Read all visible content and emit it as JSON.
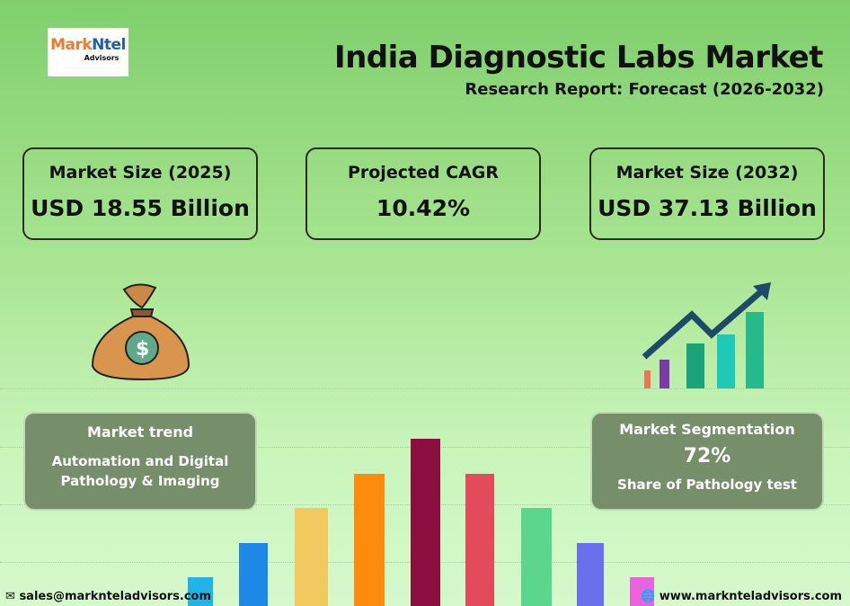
{
  "logo": {
    "brand_a": "Mark",
    "brand_b": "Ntel",
    "sub": "Advisors"
  },
  "header": {
    "title": "India Diagnostic Labs Market",
    "subtitle": "Research Report: Forecast (2026-2032)"
  },
  "stats": [
    {
      "label": "Market Size (2025)",
      "value": "USD 18.55 Billion"
    },
    {
      "label": "Projected CAGR",
      "value": "10.42%"
    },
    {
      "label": "Market Size (2032)",
      "value": "USD 37.13 Billion"
    }
  ],
  "trend": {
    "title": "Market trend",
    "text": "Automation and Digital Pathology & Imaging"
  },
  "segmentation": {
    "title": "Market Segmentation",
    "value": "72%",
    "text": "Share of Pathology test"
  },
  "decorative_bars": {
    "colors": [
      "#22b4e6",
      "#1e88e6",
      "#f1c95e",
      "#fd8c0e",
      "#8a0f3e",
      "#e44b5a",
      "#5cd68d",
      "#6870ec",
      "#e964dc"
    ],
    "relative_heights": [
      1,
      2,
      3,
      4,
      5,
      4,
      3,
      2,
      1
    ]
  },
  "footer": {
    "email": "sales@marknteladvisors.com",
    "website": "www.marknteladvisors.com"
  },
  "icons": {
    "bag": "money-bag-icon",
    "growth": "growth-chart-icon",
    "mail": "mail-icon",
    "globe": "globe-icon"
  }
}
